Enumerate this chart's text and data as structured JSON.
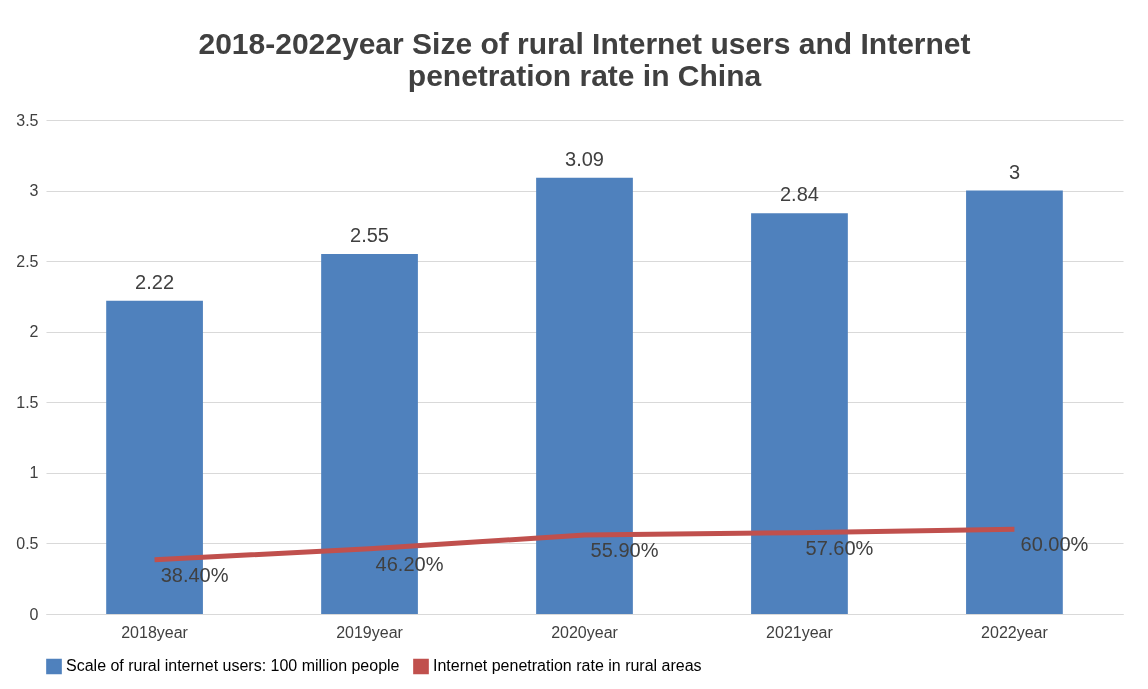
{
  "chart_data": {
    "type": "bar",
    "title": "2018-2022year Size of rural Internet users and Internet penetration rate in China",
    "categories": [
      "2018year",
      "2019year",
      "2020year",
      "2021year",
      "2022year"
    ],
    "series": [
      {
        "name": "Scale of rural internet users: 100 million people",
        "color": "#4f81bd",
        "values": [
          2.22,
          2.55,
          3.09,
          2.84,
          3
        ],
        "value_labels": [
          "2.22",
          "2.55",
          "3.09",
          "2.84",
          "3"
        ]
      },
      {
        "name": "Internet penetration rate in rural areas",
        "type": "line",
        "color": "#c0504d",
        "values": [
          0.384,
          0.462,
          0.559,
          0.576,
          0.6
        ],
        "value_labels": [
          "38.40%",
          "46.20%",
          "55.90%",
          "57.60%",
          "60.00%"
        ]
      }
    ],
    "ylim": [
      0,
      3.5
    ],
    "yticks": [
      0,
      0.5,
      1,
      1.5,
      2,
      2.5,
      3,
      3.5
    ],
    "grid": "y",
    "legend": "bottom"
  }
}
